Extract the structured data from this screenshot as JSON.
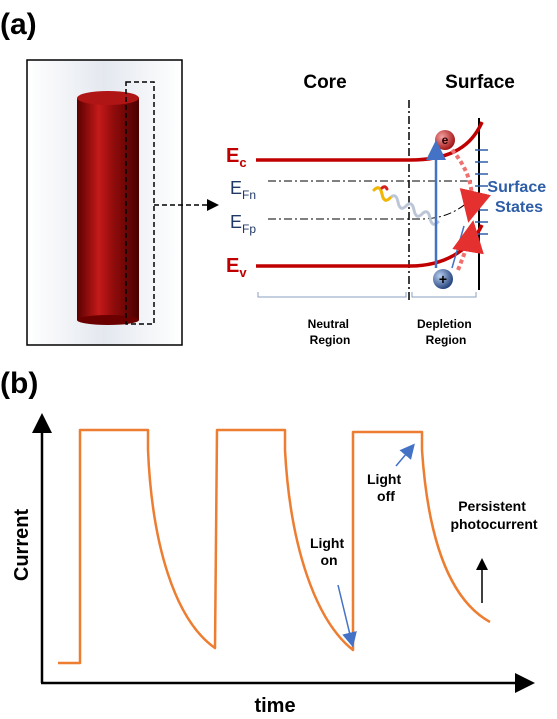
{
  "panel_a": {
    "label": "(a)",
    "core_title": "Core",
    "surface_title": "Surface",
    "ec": {
      "main": "E",
      "sub": "c"
    },
    "ev": {
      "main": "E",
      "sub": "v"
    },
    "efn": {
      "main": "E",
      "sub": "Fn"
    },
    "efp": {
      "main": "E",
      "sub": "Fp"
    },
    "electron_symbol": "e",
    "hole_symbol": "+",
    "surface_states": [
      "Surface",
      "States"
    ],
    "neutral_region": [
      "Neutral",
      "Region"
    ],
    "depletion_region": [
      "Depletion",
      "Region"
    ]
  },
  "panel_b": {
    "label": "(b)",
    "y_axis_label": "Current",
    "x_axis_label": "time",
    "annotations": {
      "light_on": [
        "Light",
        "on"
      ],
      "light_off": [
        "Light",
        "off"
      ],
      "persistent": [
        "Persistent",
        "photocurrent"
      ]
    }
  },
  "colors": {
    "band_red": "#c00000",
    "trace_orange": "#ed7d31",
    "arrow_blue": "#4472c4",
    "surface_blue": "#2e5ea8",
    "rod_red": "#8b0000"
  }
}
